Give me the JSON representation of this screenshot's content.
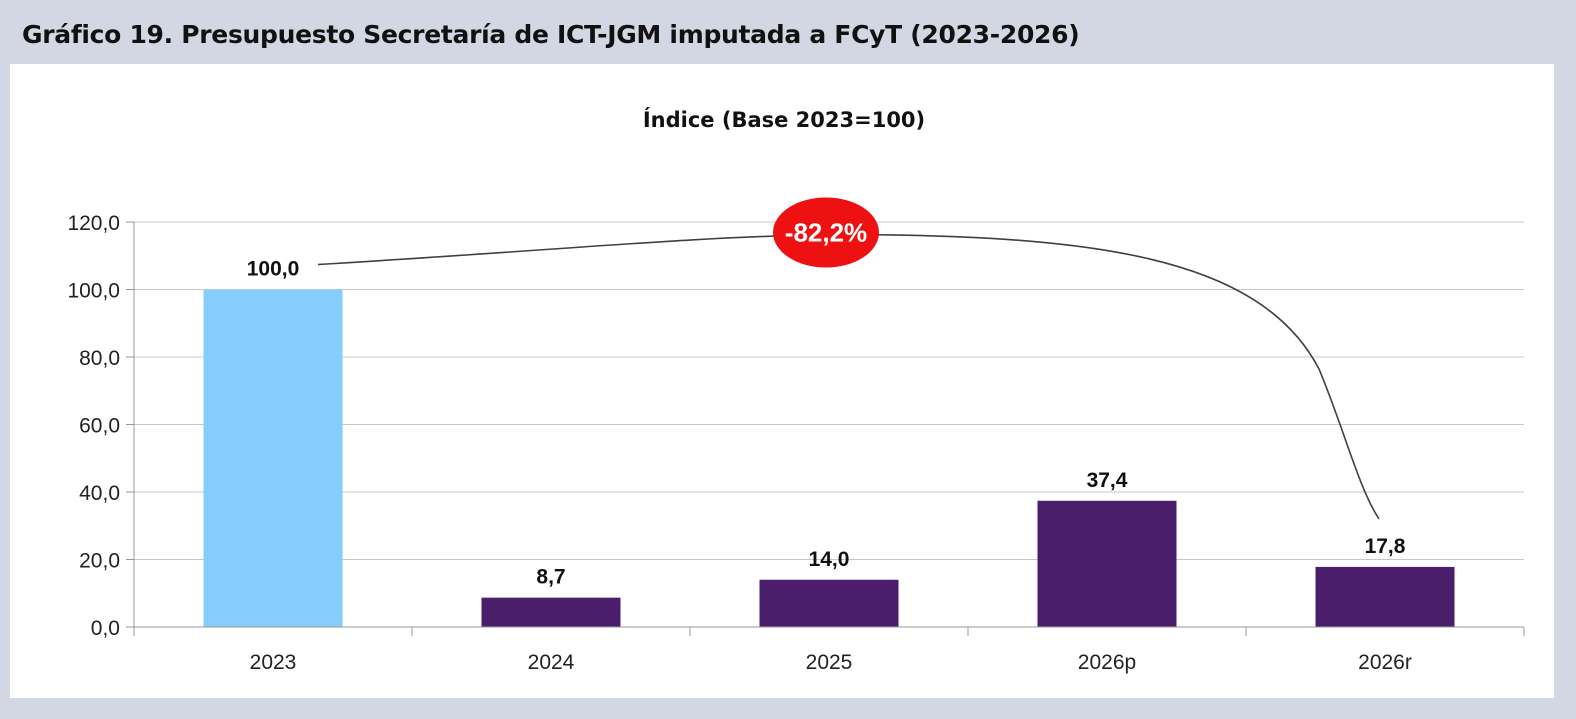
{
  "header": {
    "title": "Gráfico 19. Presupuesto Secretaría de ICT-JGM imputada a FCyT (2023-2026)"
  },
  "chart_data": {
    "type": "bar",
    "title": "Índice (Base 2023=100)",
    "xlabel": "",
    "ylabel": "",
    "categories": [
      "2023",
      "2024",
      "2025",
      "2026p",
      "2026r"
    ],
    "values": [
      100.0,
      8.7,
      14.0,
      37.4,
      17.8
    ],
    "value_labels": [
      "100,0",
      "8,7",
      "14,0",
      "37,4",
      "17,8"
    ],
    "y_ticks": [
      0,
      20,
      40,
      60,
      80,
      100,
      120
    ],
    "y_tick_labels": [
      "0,0",
      "20,0",
      "40,0",
      "60,0",
      "80,0",
      "100,0",
      "120,0"
    ],
    "ylim": [
      0,
      120
    ],
    "grid": true,
    "legend": "none",
    "colors": {
      "highlight": "#87cdfb",
      "bar": "#4b1e6b",
      "grid": "#c8c8c8",
      "badge": "#ee1111",
      "connector": "#404040"
    },
    "highlight_index": 0,
    "annotation": {
      "text": "-82,2%",
      "from_category": "2023",
      "to_category": "2026r"
    }
  }
}
